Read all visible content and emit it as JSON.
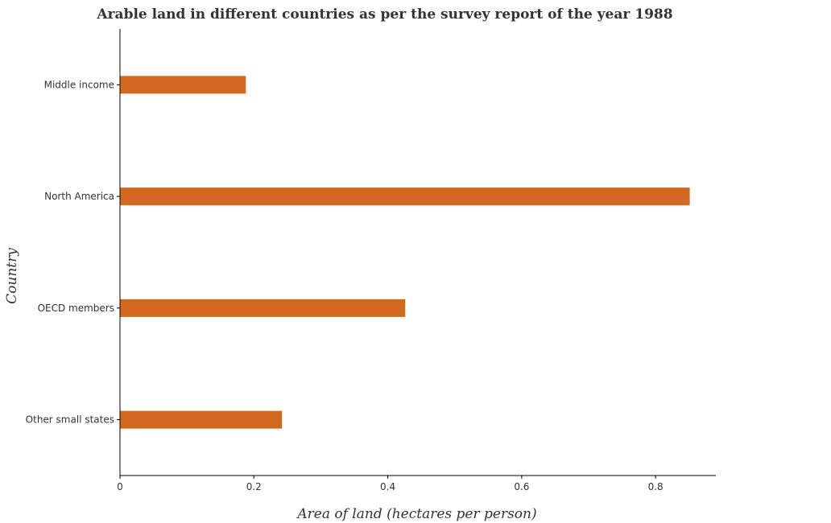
{
  "chart_data": {
    "type": "bar",
    "orientation": "horizontal",
    "title": "Arable land in different countries as per the survey report of the year 1988",
    "xlabel": "Area of land (hectares per person)",
    "ylabel": "Country",
    "categories": [
      "Middle income",
      "North America",
      "OECD members",
      "Other small states"
    ],
    "values": [
      0.188,
      0.851,
      0.426,
      0.242
    ],
    "xlim": [
      0,
      0.89
    ],
    "xticks": [
      0,
      0.2,
      0.4,
      0.6,
      0.8
    ],
    "xtick_labels": [
      "0",
      "0.2",
      "0.4",
      "0.6",
      "0.8"
    ],
    "grid": false,
    "bar_color": "#d2691e"
  }
}
